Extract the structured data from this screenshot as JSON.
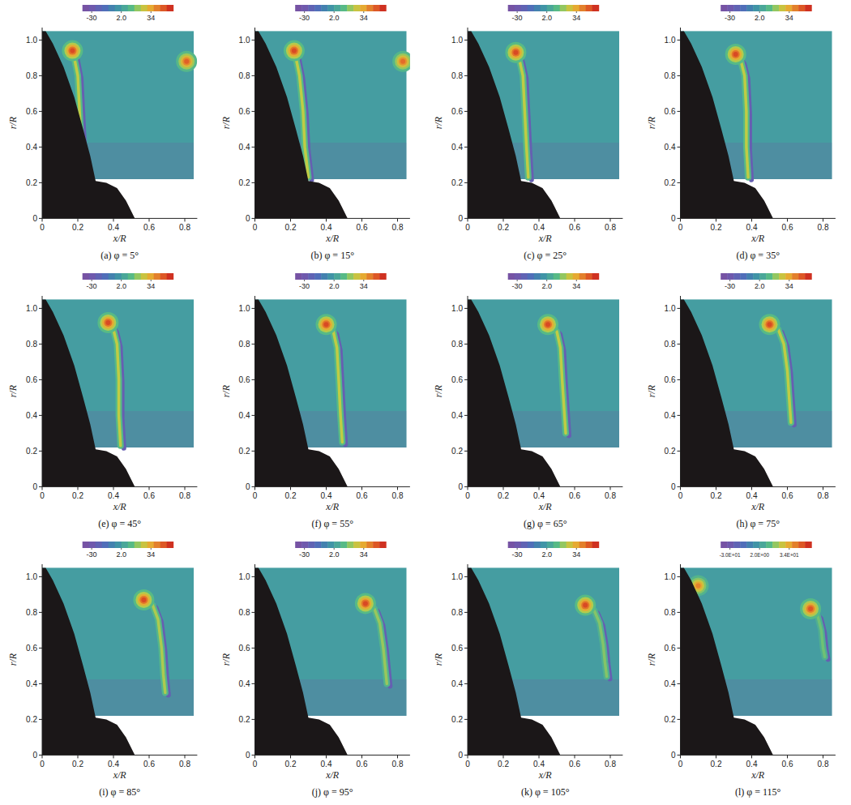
{
  "chart_data": [
    {
      "type": "contour",
      "title": "(a) φ = 5°",
      "xlabel": "x/R",
      "ylabel": "r/R",
      "xlim": [
        0,
        0.87
      ],
      "ylim": [
        0,
        1.07
      ],
      "xticks": [
        0,
        0.2,
        0.4,
        0.6,
        0.8
      ],
      "yticks": [
        0,
        0.2,
        0.4,
        0.6,
        0.8,
        {
          "value": 1,
          "label": "1.0"
        }
      ],
      "colorbar": {
        "range": [
          -40,
          58
        ],
        "ticks": [
          -30,
          {
            "value": 2,
            "label": "2.0"
          },
          34
        ]
      },
      "field": {
        "x": [
          0,
          0.85
        ],
        "r": [
          0.22,
          1.05
        ],
        "vorticity": 2
      },
      "vortices": [
        {
          "x": 0.17,
          "r": 0.94,
          "vorticity": 50
        },
        {
          "x": 0.81,
          "r": 0.88,
          "vorticity": 46
        }
      ],
      "sheet": {
        "x": [
          0.18,
          0.2,
          0.21,
          0.22,
          0.24
        ],
        "r": [
          0.9,
          0.8,
          0.6,
          0.4,
          0.25
        ],
        "vorticity": 24,
        "shear_vorticity": -25
      }
    },
    {
      "type": "contour",
      "title": "(b) φ = 15°",
      "xlabel": "x/R",
      "ylabel": "r/R",
      "xlim": [
        0,
        0.87
      ],
      "ylim": [
        0,
        1.07
      ],
      "xticks": [
        0,
        0.2,
        0.4,
        0.6,
        0.8
      ],
      "yticks": [
        0,
        0.2,
        0.4,
        0.6,
        0.8,
        {
          "value": 1,
          "label": "1.0"
        }
      ],
      "colorbar": {
        "range": [
          -40,
          58
        ],
        "ticks": [
          -30,
          {
            "value": 2,
            "label": "2.0"
          },
          34
        ]
      },
      "field": {
        "x": [
          0,
          0.85
        ],
        "r": [
          0.22,
          1.05
        ],
        "vorticity": 2
      },
      "vortices": [
        {
          "x": 0.22,
          "r": 0.94,
          "vorticity": 50
        },
        {
          "x": 0.83,
          "r": 0.88,
          "vorticity": 44
        }
      ],
      "sheet": {
        "x": [
          0.23,
          0.25,
          0.27,
          0.28,
          0.3
        ],
        "r": [
          0.9,
          0.8,
          0.6,
          0.4,
          0.23
        ],
        "vorticity": 24,
        "shear_vorticity": -25
      }
    },
    {
      "type": "contour",
      "title": "(c) φ = 25°",
      "xlabel": "x/R",
      "ylabel": "r/R",
      "xlim": [
        0,
        0.87
      ],
      "ylim": [
        0,
        1.07
      ],
      "xticks": [
        0,
        0.2,
        0.4,
        0.6,
        0.8
      ],
      "yticks": [
        0,
        0.2,
        0.4,
        0.6,
        0.8,
        {
          "value": 1,
          "label": "1.0"
        }
      ],
      "colorbar": {
        "range": [
          -40,
          58
        ],
        "ticks": [
          -30,
          {
            "value": 2,
            "label": "2.0"
          },
          34
        ]
      },
      "field": {
        "x": [
          0,
          0.85
        ],
        "r": [
          0.22,
          1.05
        ],
        "vorticity": 2
      },
      "vortices": [
        {
          "x": 0.27,
          "r": 0.93,
          "vorticity": 50
        }
      ],
      "sheet": {
        "x": [
          0.29,
          0.31,
          0.32,
          0.33,
          0.34
        ],
        "r": [
          0.89,
          0.8,
          0.6,
          0.4,
          0.23
        ],
        "vorticity": 24,
        "shear_vorticity": -25
      }
    },
    {
      "type": "contour",
      "title": "(d) φ = 35°",
      "xlabel": "x/R",
      "ylabel": "r/R",
      "xlim": [
        0,
        0.87
      ],
      "ylim": [
        0,
        1.07
      ],
      "xticks": [
        0,
        0.2,
        0.4,
        0.6,
        0.8
      ],
      "yticks": [
        0,
        0.2,
        0.4,
        0.6,
        0.8,
        {
          "value": 1,
          "label": "1.0"
        }
      ],
      "colorbar": {
        "range": [
          -40,
          58
        ],
        "ticks": [
          -30,
          {
            "value": 2,
            "label": "2.0"
          },
          34
        ]
      },
      "field": {
        "x": [
          0,
          0.85
        ],
        "r": [
          0.22,
          1.05
        ],
        "vorticity": 2
      },
      "vortices": [
        {
          "x": 0.31,
          "r": 0.92,
          "vorticity": 50
        }
      ],
      "sheet": {
        "x": [
          0.34,
          0.36,
          0.37,
          0.37,
          0.38
        ],
        "r": [
          0.88,
          0.8,
          0.6,
          0.4,
          0.23
        ],
        "vorticity": 24,
        "shear_vorticity": -25
      }
    },
    {
      "type": "contour",
      "title": "(e) φ = 45°",
      "xlabel": "x/R",
      "ylabel": "r/R",
      "xlim": [
        0,
        0.87
      ],
      "ylim": [
        0,
        1.07
      ],
      "xticks": [
        0,
        0.2,
        0.4,
        0.6,
        0.8
      ],
      "yticks": [
        0,
        0.2,
        0.4,
        0.6,
        0.8,
        {
          "value": 1,
          "label": "1.0"
        }
      ],
      "colorbar": {
        "range": [
          -40,
          58
        ],
        "ticks": [
          -30,
          {
            "value": 2,
            "label": "2.0"
          },
          34
        ]
      },
      "field": {
        "x": [
          0,
          0.85
        ],
        "r": [
          0.22,
          1.05
        ],
        "vorticity": 2
      },
      "vortices": [
        {
          "x": 0.37,
          "r": 0.92,
          "vorticity": 50
        }
      ],
      "sheet": {
        "x": [
          0.4,
          0.42,
          0.43,
          0.43,
          0.44
        ],
        "r": [
          0.88,
          0.8,
          0.6,
          0.4,
          0.23
        ],
        "vorticity": 24,
        "shear_vorticity": -25
      }
    },
    {
      "type": "contour",
      "title": "(f) φ = 55°",
      "xlabel": "x/R",
      "ylabel": "r/R",
      "xlim": [
        0,
        0.87
      ],
      "ylim": [
        0,
        1.07
      ],
      "xticks": [
        0,
        0.2,
        0.4,
        0.6,
        0.8
      ],
      "yticks": [
        0,
        0.2,
        0.4,
        0.6,
        0.8,
        {
          "value": 1,
          "label": "1.0"
        }
      ],
      "colorbar": {
        "range": [
          -40,
          58
        ],
        "ticks": [
          -30,
          {
            "value": 2,
            "label": "2.0"
          },
          34
        ]
      },
      "field": {
        "x": [
          0,
          0.85
        ],
        "r": [
          0.22,
          1.05
        ],
        "vorticity": 2
      },
      "vortices": [
        {
          "x": 0.4,
          "r": 0.91,
          "vorticity": 50
        }
      ],
      "sheet": {
        "x": [
          0.44,
          0.46,
          0.47,
          0.48,
          0.49
        ],
        "r": [
          0.87,
          0.78,
          0.6,
          0.4,
          0.25
        ],
        "vorticity": 24,
        "shear_vorticity": -25
      }
    },
    {
      "type": "contour",
      "title": "(g) φ = 65°",
      "xlabel": "x/R",
      "ylabel": "r/R",
      "xlim": [
        0,
        0.87
      ],
      "ylim": [
        0,
        1.07
      ],
      "xticks": [
        0,
        0.2,
        0.4,
        0.6,
        0.8
      ],
      "yticks": [
        0,
        0.2,
        0.4,
        0.6,
        0.8,
        {
          "value": 1,
          "label": "1.0"
        }
      ],
      "colorbar": {
        "range": [
          -40,
          58
        ],
        "ticks": [
          -30,
          {
            "value": 2,
            "label": "2.0"
          },
          34
        ]
      },
      "field": {
        "x": [
          0,
          0.85
        ],
        "r": [
          0.22,
          1.05
        ],
        "vorticity": 2
      },
      "vortices": [
        {
          "x": 0.45,
          "r": 0.91,
          "vorticity": 50
        }
      ],
      "sheet": {
        "x": [
          0.5,
          0.52,
          0.53,
          0.54,
          0.55
        ],
        "r": [
          0.87,
          0.78,
          0.6,
          0.45,
          0.3
        ],
        "vorticity": 24,
        "shear_vorticity": -25
      }
    },
    {
      "type": "contour",
      "title": "(h) φ = 75°",
      "xlabel": "x/R",
      "ylabel": "r/R",
      "xlim": [
        0,
        0.87
      ],
      "ylim": [
        0,
        1.07
      ],
      "xticks": [
        0,
        0.2,
        0.4,
        0.6,
        0.8
      ],
      "yticks": [
        0,
        0.2,
        0.4,
        0.6,
        0.8,
        {
          "value": 1,
          "label": "1.0"
        }
      ],
      "colorbar": {
        "range": [
          -40,
          58
        ],
        "ticks": [
          -30,
          {
            "value": 2,
            "label": "2.0"
          },
          34
        ]
      },
      "field": {
        "x": [
          0,
          0.85
        ],
        "r": [
          0.22,
          1.05
        ],
        "vorticity": 2
      },
      "vortices": [
        {
          "x": 0.5,
          "r": 0.91,
          "vorticity": 50
        }
      ],
      "sheet": {
        "x": [
          0.55,
          0.58,
          0.6,
          0.61,
          0.62
        ],
        "r": [
          0.88,
          0.8,
          0.65,
          0.5,
          0.36
        ],
        "vorticity": 24,
        "shear_vorticity": -25
      }
    },
    {
      "type": "contour",
      "title": "(i) φ = 85°",
      "xlabel": "x/R",
      "ylabel": "r/R",
      "xlim": [
        0,
        0.87
      ],
      "ylim": [
        0,
        1.07
      ],
      "xticks": [
        0,
        0.2,
        0.4,
        0.6,
        0.8
      ],
      "yticks": [
        0,
        0.2,
        0.4,
        0.6,
        0.8,
        {
          "value": 1,
          "label": "1.0"
        }
      ],
      "colorbar": {
        "range": [
          -40,
          58
        ],
        "ticks": [
          -30,
          {
            "value": 2,
            "label": "2.0"
          },
          34
        ]
      },
      "field": {
        "x": [
          0,
          0.85
        ],
        "r": [
          0.22,
          1.05
        ],
        "vorticity": 2
      },
      "vortices": [
        {
          "x": 0.57,
          "r": 0.87,
          "vorticity": 50
        }
      ],
      "sheet": {
        "x": [
          0.62,
          0.65,
          0.67,
          0.68,
          0.69
        ],
        "r": [
          0.84,
          0.76,
          0.6,
          0.45,
          0.35
        ],
        "vorticity": 22,
        "shear_vorticity": -25
      }
    },
    {
      "type": "contour",
      "title": "(j) φ = 95°",
      "xlabel": "x/R",
      "ylabel": "r/R",
      "xlim": [
        0,
        0.87
      ],
      "ylim": [
        0,
        1.07
      ],
      "xticks": [
        0,
        0.2,
        0.4,
        0.6,
        0.8
      ],
      "yticks": [
        0,
        0.2,
        0.4,
        0.6,
        0.8,
        {
          "value": 1,
          "label": "1.0"
        }
      ],
      "colorbar": {
        "range": [
          -40,
          58
        ],
        "ticks": [
          -30,
          {
            "value": 2,
            "label": "2.0"
          },
          34
        ]
      },
      "field": {
        "x": [
          0,
          0.85
        ],
        "r": [
          0.22,
          1.05
        ],
        "vorticity": 2
      },
      "vortices": [
        {
          "x": 0.62,
          "r": 0.85,
          "vorticity": 50
        }
      ],
      "sheet": {
        "x": [
          0.67,
          0.7,
          0.72,
          0.73,
          0.74
        ],
        "r": [
          0.82,
          0.74,
          0.6,
          0.5,
          0.4
        ],
        "vorticity": 20,
        "shear_vorticity": -25
      }
    },
    {
      "type": "contour",
      "title": "(k) φ = 105°",
      "xlabel": "x/R",
      "ylabel": "r/R",
      "xlim": [
        0,
        0.87
      ],
      "ylim": [
        0,
        1.07
      ],
      "xticks": [
        0,
        0.2,
        0.4,
        0.6,
        0.8
      ],
      "yticks": [
        0,
        0.2,
        0.4,
        0.6,
        0.8,
        {
          "value": 1,
          "label": "1.0"
        }
      ],
      "colorbar": {
        "range": [
          -40,
          58
        ],
        "ticks": [
          -30,
          {
            "value": 2,
            "label": "2.0"
          },
          34
        ]
      },
      "field": {
        "x": [
          0,
          0.85
        ],
        "r": [
          0.22,
          1.05
        ],
        "vorticity": 2
      },
      "vortices": [
        {
          "x": 0.66,
          "r": 0.84,
          "vorticity": 50
        }
      ],
      "sheet": {
        "x": [
          0.71,
          0.74,
          0.76,
          0.77,
          0.78
        ],
        "r": [
          0.81,
          0.74,
          0.62,
          0.52,
          0.44
        ],
        "vorticity": 18,
        "shear_vorticity": -25
      }
    },
    {
      "type": "contour",
      "title": "(l) φ = 115°",
      "xlabel": "x/R",
      "ylabel": "r/R",
      "xlim": [
        0,
        0.87
      ],
      "ylim": [
        0,
        1.07
      ],
      "xticks": [
        0,
        0.2,
        0.4,
        0.6,
        0.8
      ],
      "yticks": [
        0,
        0.2,
        0.4,
        0.6,
        0.8,
        {
          "value": 1,
          "label": "1.0"
        }
      ],
      "colorbar": {
        "range": [
          -40,
          58
        ],
        "ticks": [
          {
            "value": -30,
            "label": "-3.0E+01"
          },
          {
            "value": 2,
            "label": "2.0E+00"
          },
          {
            "value": 34,
            "label": "3.4E+01"
          }
        ]
      },
      "field": {
        "x": [
          0,
          0.85
        ],
        "r": [
          0.22,
          1.05
        ],
        "vorticity": 2
      },
      "vortices": [
        {
          "x": 0.73,
          "r": 0.82,
          "vorticity": 48
        },
        {
          "x": 0.1,
          "r": 0.95,
          "vorticity": 40
        }
      ],
      "sheet": {
        "x": [
          0.77,
          0.79,
          0.8,
          0.81
        ],
        "r": [
          0.78,
          0.7,
          0.6,
          0.55
        ],
        "vorticity": 16,
        "shear_vorticity": -25
      }
    }
  ]
}
